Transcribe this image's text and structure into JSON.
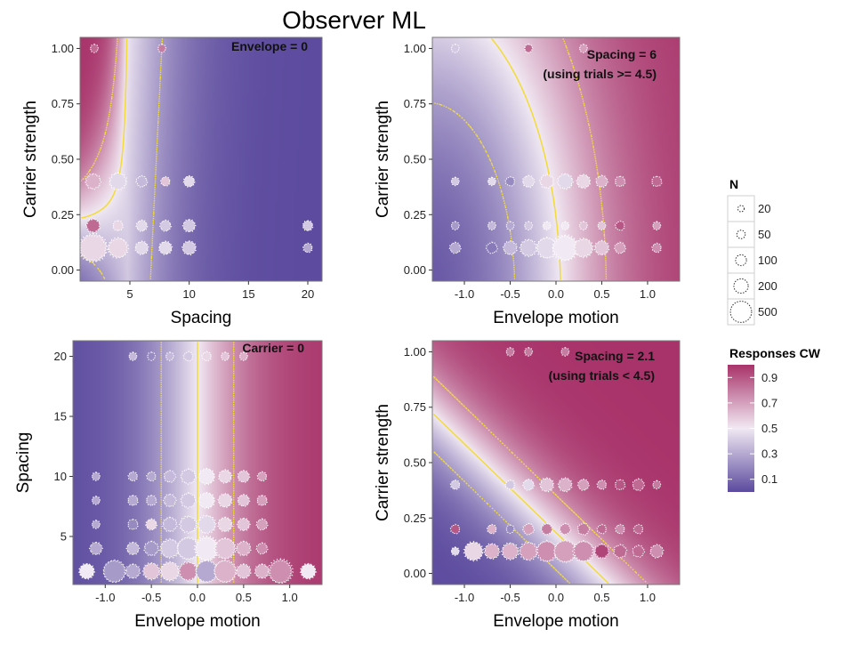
{
  "title": "Observer ML",
  "colors": {
    "low": "#5b4a9e",
    "mid": "#f1e9f3",
    "high": "#a8336a",
    "contour": "#f2dc3c",
    "panel_border": "#777777"
  },
  "chart_data": [
    {
      "type": "heatmap",
      "panel": "top-left",
      "annotation": [
        "Envelope = 0"
      ],
      "xlabel": "Spacing",
      "ylabel": "Carrier strength",
      "xlim": [
        0.8,
        21.2
      ],
      "ylim": [
        -0.05,
        1.05
      ],
      "xticks": [
        5,
        10,
        15,
        20
      ],
      "yticks": [
        0.0,
        0.25,
        0.5,
        0.75,
        1.0
      ],
      "xtick_labels": [
        "5",
        "10",
        "15",
        "20"
      ],
      "ytick_labels": [
        "0.00",
        "0.25",
        "0.50",
        "0.75",
        "1.00"
      ],
      "points": [
        {
          "x": 2,
          "y": 1.0,
          "n": 20,
          "p": 0.85
        },
        {
          "x": 7.7,
          "y": 1.0,
          "n": 20,
          "p": 0.8
        },
        {
          "x": 1.9,
          "y": 0.4,
          "n": 120,
          "p": 0.65
        },
        {
          "x": 4,
          "y": 0.4,
          "n": 160,
          "p": 0.45
        },
        {
          "x": 6,
          "y": 0.4,
          "n": 50,
          "p": 0.35
        },
        {
          "x": 8,
          "y": 0.4,
          "n": 30,
          "p": 0.6
        },
        {
          "x": 10,
          "y": 0.4,
          "n": 50,
          "p": 0.45
        },
        {
          "x": 1.9,
          "y": 0.2,
          "n": 90,
          "p": 0.85
        },
        {
          "x": 4,
          "y": 0.2,
          "n": 40,
          "p": 0.55
        },
        {
          "x": 6,
          "y": 0.2,
          "n": 50,
          "p": 0.45
        },
        {
          "x": 8,
          "y": 0.2,
          "n": 50,
          "p": 0.4
        },
        {
          "x": 10,
          "y": 0.2,
          "n": 70,
          "p": 0.4
        },
        {
          "x": 20,
          "y": 0.2,
          "n": 40,
          "p": 0.4
        },
        {
          "x": 1.9,
          "y": 0.1,
          "n": 500,
          "p": 0.55
        },
        {
          "x": 4,
          "y": 0.1,
          "n": 230,
          "p": 0.55
        },
        {
          "x": 6,
          "y": 0.1,
          "n": 80,
          "p": 0.45
        },
        {
          "x": 8,
          "y": 0.1,
          "n": 80,
          "p": 0.45
        },
        {
          "x": 10,
          "y": 0.1,
          "n": 90,
          "p": 0.4
        },
        {
          "x": 20,
          "y": 0.1,
          "n": 30,
          "p": 0.3
        }
      ]
    },
    {
      "type": "heatmap",
      "panel": "top-right",
      "annotation": [
        "Spacing = 6",
        "(using trials >= 4.5)"
      ],
      "xlabel": "Envelope motion",
      "ylabel": "Carrier strength",
      "xlim": [
        -1.35,
        1.35
      ],
      "ylim": [
        -0.05,
        1.05
      ],
      "xticks": [
        -1.0,
        -0.5,
        0.0,
        0.5,
        1.0
      ],
      "yticks": [
        0.0,
        0.25,
        0.5,
        0.75,
        1.0
      ],
      "xtick_labels": [
        "-1.0",
        "-0.5",
        "0.0",
        "0.5",
        "1.0"
      ],
      "ytick_labels": [
        "0.00",
        "0.25",
        "0.50",
        "0.75",
        "1.00"
      ],
      "points": [
        {
          "x": -1.1,
          "y": 1.0,
          "n": 20,
          "p": 0.4
        },
        {
          "x": -0.3,
          "y": 1.0,
          "n": 20,
          "p": 0.55
        },
        {
          "x": -0.3,
          "y": 1.0,
          "n": 20,
          "p": 0.85
        },
        {
          "x": 0.3,
          "y": 1.0,
          "n": 20,
          "p": 0.7
        },
        {
          "x": -1.1,
          "y": 0.4,
          "n": 20,
          "p": 0.4
        },
        {
          "x": -0.7,
          "y": 0.4,
          "n": 20,
          "p": 0.45
        },
        {
          "x": -0.5,
          "y": 0.4,
          "n": 30,
          "p": 0.2
        },
        {
          "x": -0.3,
          "y": 0.4,
          "n": 60,
          "p": 0.45
        },
        {
          "x": -0.1,
          "y": 0.4,
          "n": 90,
          "p": 0.55
        },
        {
          "x": 0.1,
          "y": 0.4,
          "n": 120,
          "p": 0.45
        },
        {
          "x": 0.3,
          "y": 0.4,
          "n": 90,
          "p": 0.55
        },
        {
          "x": 0.5,
          "y": 0.4,
          "n": 60,
          "p": 0.65
        },
        {
          "x": 0.7,
          "y": 0.4,
          "n": 40,
          "p": 0.75
        },
        {
          "x": 1.1,
          "y": 0.4,
          "n": 40,
          "p": 0.85
        },
        {
          "x": -1.1,
          "y": 0.2,
          "n": 20,
          "p": 0.25
        },
        {
          "x": -0.7,
          "y": 0.2,
          "n": 20,
          "p": 0.35
        },
        {
          "x": -0.5,
          "y": 0.2,
          "n": 20,
          "p": 0.3
        },
        {
          "x": -0.3,
          "y": 0.2,
          "n": 20,
          "p": 0.4
        },
        {
          "x": -0.1,
          "y": 0.2,
          "n": 20,
          "p": 0.5
        },
        {
          "x": 0.1,
          "y": 0.2,
          "n": 20,
          "p": 0.5
        },
        {
          "x": 0.3,
          "y": 0.2,
          "n": 20,
          "p": 0.6
        },
        {
          "x": 0.5,
          "y": 0.2,
          "n": 20,
          "p": 0.6
        },
        {
          "x": 0.7,
          "y": 0.2,
          "n": 30,
          "p": 0.9
        },
        {
          "x": 1.1,
          "y": 0.2,
          "n": 20,
          "p": 0.7
        },
        {
          "x": -1.1,
          "y": 0.1,
          "n": 50,
          "p": 0.3
        },
        {
          "x": -0.7,
          "y": 0.1,
          "n": 50,
          "p": 0.15
        },
        {
          "x": -0.5,
          "y": 0.1,
          "n": 90,
          "p": 0.35
        },
        {
          "x": -0.3,
          "y": 0.1,
          "n": 150,
          "p": 0.4
        },
        {
          "x": -0.1,
          "y": 0.1,
          "n": 250,
          "p": 0.45
        },
        {
          "x": 0.1,
          "y": 0.1,
          "n": 400,
          "p": 0.5
        },
        {
          "x": 0.3,
          "y": 0.1,
          "n": 200,
          "p": 0.55
        },
        {
          "x": 0.5,
          "y": 0.1,
          "n": 100,
          "p": 0.6
        },
        {
          "x": 0.7,
          "y": 0.1,
          "n": 50,
          "p": 0.7
        },
        {
          "x": 1.1,
          "y": 0.1,
          "n": 30,
          "p": 0.75
        }
      ]
    },
    {
      "type": "heatmap",
      "panel": "bottom-left",
      "annotation": [
        "Carrier = 0"
      ],
      "xlabel": "Envelope motion",
      "ylabel": "Spacing",
      "xlim": [
        -1.35,
        1.35
      ],
      "ylim": [
        1,
        21.3
      ],
      "xticks": [
        -1.0,
        -0.5,
        0.0,
        0.5,
        1.0
      ],
      "yticks": [
        5,
        10,
        15,
        20
      ],
      "xtick_labels": [
        "-1.0",
        "-0.5",
        "0.0",
        "0.5",
        "1.0"
      ],
      "ytick_labels": [
        "5",
        "10",
        "15",
        "20"
      ],
      "points": [
        {
          "x": -0.7,
          "y": 20,
          "n": 20,
          "p": 0.35
        },
        {
          "x": -0.5,
          "y": 20,
          "n": 20,
          "p": 0.2
        },
        {
          "x": -0.3,
          "y": 20,
          "n": 20,
          "p": 0.35
        },
        {
          "x": -0.1,
          "y": 20,
          "n": 30,
          "p": 0.4
        },
        {
          "x": 0.1,
          "y": 20,
          "n": 30,
          "p": 0.55
        },
        {
          "x": 0.3,
          "y": 20,
          "n": 20,
          "p": 0.6
        },
        {
          "x": 0.5,
          "y": 20,
          "n": 20,
          "p": 0.65
        },
        {
          "x": -1.1,
          "y": 10,
          "n": 20,
          "p": 0.3
        },
        {
          "x": -0.7,
          "y": 10,
          "n": 30,
          "p": 0.3
        },
        {
          "x": -0.5,
          "y": 10,
          "n": 30,
          "p": 0.3
        },
        {
          "x": -0.3,
          "y": 10,
          "n": 60,
          "p": 0.35
        },
        {
          "x": -0.1,
          "y": 10,
          "n": 110,
          "p": 0.4
        },
        {
          "x": 0.1,
          "y": 10,
          "n": 130,
          "p": 0.5
        },
        {
          "x": 0.3,
          "y": 10,
          "n": 80,
          "p": 0.55
        },
        {
          "x": 0.5,
          "y": 10,
          "n": 60,
          "p": 0.6
        },
        {
          "x": 0.7,
          "y": 10,
          "n": 30,
          "p": 0.7
        },
        {
          "x": -1.1,
          "y": 8,
          "n": 20,
          "p": 0.3
        },
        {
          "x": -0.7,
          "y": 8,
          "n": 40,
          "p": 0.3
        },
        {
          "x": -0.5,
          "y": 8,
          "n": 40,
          "p": 0.3
        },
        {
          "x": -0.3,
          "y": 8,
          "n": 70,
          "p": 0.35
        },
        {
          "x": -0.1,
          "y": 8,
          "n": 110,
          "p": 0.4
        },
        {
          "x": 0.1,
          "y": 8,
          "n": 130,
          "p": 0.5
        },
        {
          "x": 0.3,
          "y": 8,
          "n": 90,
          "p": 0.55
        },
        {
          "x": 0.5,
          "y": 8,
          "n": 60,
          "p": 0.6
        },
        {
          "x": 0.7,
          "y": 8,
          "n": 40,
          "p": 0.7
        },
        {
          "x": -1.1,
          "y": 6,
          "n": 20,
          "p": 0.3
        },
        {
          "x": -0.7,
          "y": 6,
          "n": 40,
          "p": 0.2
        },
        {
          "x": -0.5,
          "y": 6,
          "n": 50,
          "p": 0.55
        },
        {
          "x": -0.3,
          "y": 6,
          "n": 100,
          "p": 0.35
        },
        {
          "x": -0.1,
          "y": 6,
          "n": 150,
          "p": 0.4
        },
        {
          "x": 0.1,
          "y": 6,
          "n": 180,
          "p": 0.45
        },
        {
          "x": 0.3,
          "y": 6,
          "n": 100,
          "p": 0.55
        },
        {
          "x": 0.5,
          "y": 6,
          "n": 70,
          "p": 0.6
        },
        {
          "x": 0.7,
          "y": 6,
          "n": 50,
          "p": 0.7
        },
        {
          "x": -1.1,
          "y": 4,
          "n": 70,
          "p": 0.3
        },
        {
          "x": -0.7,
          "y": 4,
          "n": 70,
          "p": 0.35
        },
        {
          "x": -0.5,
          "y": 4,
          "n": 100,
          "p": 0.25
        },
        {
          "x": -0.3,
          "y": 4,
          "n": 200,
          "p": 0.4
        },
        {
          "x": -0.1,
          "y": 4,
          "n": 300,
          "p": 0.4
        },
        {
          "x": 0.1,
          "y": 4,
          "n": 350,
          "p": 0.5
        },
        {
          "x": 0.3,
          "y": 4,
          "n": 250,
          "p": 0.6
        },
        {
          "x": 0.5,
          "y": 4,
          "n": 100,
          "p": 0.65
        },
        {
          "x": 0.7,
          "y": 4,
          "n": 50,
          "p": 0.75
        },
        {
          "x": -1.2,
          "y": 2.1,
          "n": 120,
          "p": 0.5
        },
        {
          "x": -0.9,
          "y": 2.1,
          "n": 300,
          "p": 0.25
        },
        {
          "x": -0.7,
          "y": 2.1,
          "n": 100,
          "p": 0.3
        },
        {
          "x": -0.5,
          "y": 2.1,
          "n": 150,
          "p": 0.6
        },
        {
          "x": -0.3,
          "y": 2.1,
          "n": 200,
          "p": 0.55
        },
        {
          "x": -0.1,
          "y": 2.1,
          "n": 200,
          "p": 0.75
        },
        {
          "x": 0.1,
          "y": 2.1,
          "n": 300,
          "p": 0.3
        },
        {
          "x": 0.3,
          "y": 2.1,
          "n": 300,
          "p": 0.65
        },
        {
          "x": 0.5,
          "y": 2.1,
          "n": 100,
          "p": 0.6
        },
        {
          "x": 0.7,
          "y": 2.1,
          "n": 100,
          "p": 0.65
        },
        {
          "x": 0.9,
          "y": 2.1,
          "n": 350,
          "p": 0.75
        },
        {
          "x": 1.2,
          "y": 2.1,
          "n": 120,
          "p": 0.5
        }
      ]
    },
    {
      "type": "heatmap",
      "panel": "bottom-right",
      "annotation": [
        "Spacing = 2.1",
        "(using trials < 4.5)"
      ],
      "xlabel": "Envelope motion",
      "ylabel": "Carrier strength",
      "xlim": [
        -1.35,
        1.35
      ],
      "ylim": [
        -0.05,
        1.05
      ],
      "xticks": [
        -1.0,
        -0.5,
        0.0,
        0.5,
        1.0
      ],
      "yticks": [
        0.0,
        0.25,
        0.5,
        0.75,
        1.0
      ],
      "xtick_labels": [
        "-1.0",
        "-0.5",
        "0.0",
        "0.5",
        "1.0"
      ],
      "ytick_labels": [
        "0.00",
        "0.25",
        "0.50",
        "0.75",
        "1.00"
      ],
      "points": [
        {
          "x": -0.5,
          "y": 1.0,
          "n": 20,
          "p": 0.8
        },
        {
          "x": -0.3,
          "y": 1.0,
          "n": 20,
          "p": 0.8
        },
        {
          "x": 0.1,
          "y": 1.0,
          "n": 20,
          "p": 0.8
        },
        {
          "x": -1.1,
          "y": 0.4,
          "n": 30,
          "p": 0.4
        },
        {
          "x": -0.5,
          "y": 0.4,
          "n": 30,
          "p": 0.4
        },
        {
          "x": -0.3,
          "y": 0.4,
          "n": 50,
          "p": 0.45
        },
        {
          "x": -0.1,
          "y": 0.4,
          "n": 90,
          "p": 0.6
        },
        {
          "x": 0.1,
          "y": 0.4,
          "n": 90,
          "p": 0.65
        },
        {
          "x": 0.3,
          "y": 0.4,
          "n": 50,
          "p": 0.7
        },
        {
          "x": 0.5,
          "y": 0.4,
          "n": 30,
          "p": 0.75
        },
        {
          "x": 0.7,
          "y": 0.4,
          "n": 40,
          "p": 0.9
        },
        {
          "x": 0.9,
          "y": 0.4,
          "n": 60,
          "p": 0.85
        },
        {
          "x": 1.1,
          "y": 0.4,
          "n": 20,
          "p": 0.8
        },
        {
          "x": -1.1,
          "y": 0.2,
          "n": 30,
          "p": 0.9
        },
        {
          "x": -0.7,
          "y": 0.2,
          "n": 30,
          "p": 0.65
        },
        {
          "x": -0.5,
          "y": 0.2,
          "n": 20,
          "p": 0.2
        },
        {
          "x": -0.3,
          "y": 0.2,
          "n": 50,
          "p": 0.7
        },
        {
          "x": -0.1,
          "y": 0.2,
          "n": 50,
          "p": 0.8
        },
        {
          "x": 0.1,
          "y": 0.2,
          "n": 50,
          "p": 0.75
        },
        {
          "x": 0.3,
          "y": 0.2,
          "n": 60,
          "p": 0.8
        },
        {
          "x": 0.5,
          "y": 0.2,
          "n": 30,
          "p": 0.85
        },
        {
          "x": 0.7,
          "y": 0.2,
          "n": 30,
          "p": 0.75
        },
        {
          "x": 0.9,
          "y": 0.2,
          "n": 30,
          "p": 0.85
        },
        {
          "x": -1.1,
          "y": 0.1,
          "n": 20,
          "p": 0.45
        },
        {
          "x": -0.9,
          "y": 0.1,
          "n": 200,
          "p": 0.55
        },
        {
          "x": -0.7,
          "y": 0.1,
          "n": 120,
          "p": 0.65
        },
        {
          "x": -0.5,
          "y": 0.1,
          "n": 150,
          "p": 0.65
        },
        {
          "x": -0.3,
          "y": 0.1,
          "n": 180,
          "p": 0.7
        },
        {
          "x": -0.1,
          "y": 0.1,
          "n": 250,
          "p": 0.75
        },
        {
          "x": 0.1,
          "y": 0.1,
          "n": 300,
          "p": 0.7
        },
        {
          "x": 0.3,
          "y": 0.1,
          "n": 250,
          "p": 0.75
        },
        {
          "x": 0.5,
          "y": 0.1,
          "n": 100,
          "p": 0.95
        },
        {
          "x": 0.7,
          "y": 0.1,
          "n": 80,
          "p": 0.85
        },
        {
          "x": 0.9,
          "y": 0.1,
          "n": 60,
          "p": 0.85
        },
        {
          "x": 1.1,
          "y": 0.1,
          "n": 80,
          "p": 0.75
        }
      ]
    }
  ],
  "legend_n": {
    "title": "N",
    "entries": [
      {
        "n": 20,
        "label": "20"
      },
      {
        "n": 50,
        "label": "50"
      },
      {
        "n": 100,
        "label": "100"
      },
      {
        "n": 200,
        "label": "200"
      },
      {
        "n": 500,
        "label": "500"
      }
    ]
  },
  "legend_color": {
    "title": "Responses CW",
    "ticks": [
      {
        "p": 0.9,
        "label": "0.9"
      },
      {
        "p": 0.7,
        "label": "0.7"
      },
      {
        "p": 0.5,
        "label": "0.5"
      },
      {
        "p": 0.3,
        "label": "0.3"
      },
      {
        "p": 0.1,
        "label": "0.1"
      }
    ]
  }
}
